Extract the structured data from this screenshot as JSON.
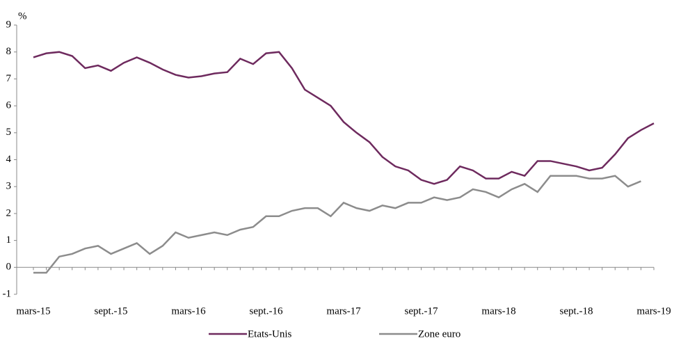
{
  "chart_data": {
    "type": "line",
    "unit": "%",
    "categories": [
      "mars-15",
      null,
      null,
      null,
      null,
      null,
      "sept.-15",
      null,
      null,
      null,
      null,
      null,
      "mars-16",
      null,
      null,
      null,
      null,
      null,
      "sept.-16",
      null,
      null,
      null,
      null,
      null,
      "mars-17",
      null,
      null,
      null,
      null,
      null,
      "sept.-17",
      null,
      null,
      null,
      null,
      null,
      "mars-18",
      null,
      null,
      null,
      null,
      null,
      "sept.-18",
      null,
      null,
      null,
      null,
      null,
      "mars-19"
    ],
    "series": [
      {
        "name": "Etats-Unis",
        "color": "#6e2a5e",
        "values": [
          7.8,
          7.95,
          8.0,
          7.85,
          7.4,
          7.5,
          7.3,
          7.6,
          7.8,
          7.6,
          7.35,
          7.15,
          7.05,
          7.1,
          7.2,
          7.25,
          7.75,
          7.55,
          7.95,
          8.0,
          7.4,
          6.6,
          6.3,
          6.0,
          5.4,
          5.0,
          4.65,
          4.1,
          3.75,
          3.6,
          3.25,
          3.1,
          3.25,
          3.75,
          3.6,
          3.3,
          3.3,
          3.55,
          3.4,
          3.95,
          3.95,
          3.85,
          3.75,
          3.6,
          3.7,
          4.2,
          4.8,
          5.1,
          5.35
        ]
      },
      {
        "name": "Zone euro",
        "color": "#8c8c8c",
        "values": [
          -0.2,
          -0.2,
          0.4,
          0.5,
          0.7,
          0.8,
          0.5,
          0.7,
          0.9,
          0.5,
          0.8,
          1.3,
          1.1,
          1.2,
          1.3,
          1.2,
          1.4,
          1.5,
          1.9,
          1.9,
          2.1,
          2.2,
          2.2,
          1.9,
          2.4,
          2.2,
          2.1,
          2.3,
          2.2,
          2.4,
          2.4,
          2.6,
          2.5,
          2.6,
          2.9,
          2.8,
          2.6,
          2.9,
          3.1,
          2.8,
          3.4,
          3.4,
          3.4,
          3.3,
          3.3,
          3.4,
          3.0,
          3.2,
          null
        ]
      }
    ],
    "ylim": [
      -1,
      9
    ],
    "yticks": [
      -1,
      0,
      1,
      2,
      3,
      4,
      5,
      6,
      7,
      8,
      9
    ],
    "legend": "bottom"
  }
}
